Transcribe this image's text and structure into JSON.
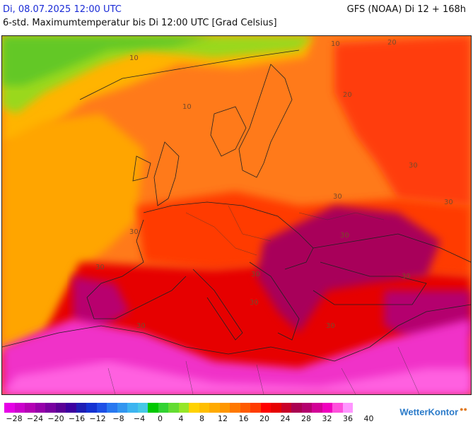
{
  "header": {
    "date": "Di, 08.07.2025 12:00 UTC",
    "model": "GFS (NOAA) Di 12 + 168h",
    "subtitle": "6-std. Maximumtemperatur bis Di 12:00 UTC [Grad Celsius]"
  },
  "map": {
    "contour_labels": [
      "10",
      "10",
      "10",
      "20",
      "20",
      "30",
      "30",
      "30",
      "30",
      "30",
      "30",
      "30",
      "30",
      "30",
      "30",
      "30"
    ]
  },
  "legend": {
    "colors": [
      "#e600e6",
      "#cc00cc",
      "#b400b4",
      "#9600aa",
      "#7800a0",
      "#5a0096",
      "#3c00a0",
      "#1e1eb4",
      "#1432d2",
      "#1e50e6",
      "#2878f0",
      "#3296f0",
      "#3cb4f0",
      "#46c8e6",
      "#00c800",
      "#32d232",
      "#64dc32",
      "#96e628",
      "#ffd200",
      "#ffbe00",
      "#ffaa00",
      "#ff9600",
      "#ff7800",
      "#ff5a00",
      "#ff3c00",
      "#ff0000",
      "#e60000",
      "#c80028",
      "#aa0050",
      "#b4006e",
      "#d20096",
      "#f000be",
      "#ff50dc",
      "#ff96ff"
    ],
    "labels": [
      "−28",
      "−24",
      "−20",
      "−16",
      "−12",
      "−8",
      "−4",
      "0",
      "4",
      "8",
      "12",
      "16",
      "20",
      "24",
      "28",
      "32",
      "36",
      "40"
    ]
  },
  "brand": "WetterKontor"
}
